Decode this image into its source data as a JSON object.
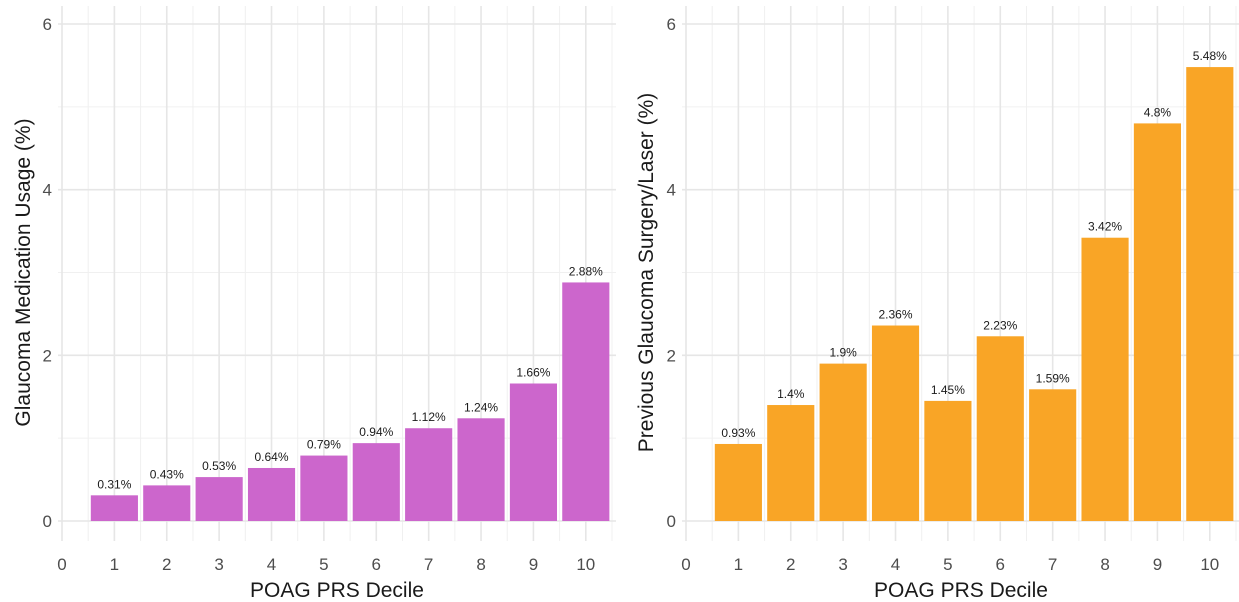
{
  "chart_data": [
    {
      "type": "bar",
      "xlabel": "POAG PRS Decile",
      "ylabel": "Glaucoma Medication Usage (%)",
      "categories": [
        "1",
        "2",
        "3",
        "4",
        "5",
        "6",
        "7",
        "8",
        "9",
        "10"
      ],
      "values": [
        0.31,
        0.43,
        0.53,
        0.64,
        0.79,
        0.94,
        1.12,
        1.24,
        1.66,
        2.88
      ],
      "data_labels": [
        "0.31%",
        "0.43%",
        "0.53%",
        "0.64%",
        "0.79%",
        "0.94%",
        "1.12%",
        "1.24%",
        "1.66%",
        "2.88%"
      ],
      "x_ticks": [
        "0",
        "1",
        "2",
        "3",
        "4",
        "5",
        "6",
        "7",
        "8",
        "9",
        "10"
      ],
      "y_ticks": [
        "0",
        "2",
        "4",
        "6"
      ],
      "ylim": [
        0,
        6
      ],
      "xlim": [
        0,
        10.5
      ],
      "grid": true,
      "bar_color": "#cc66cc"
    },
    {
      "type": "bar",
      "xlabel": "POAG PRS Decile",
      "ylabel": "Previous Glaucoma Surgery/Laser (%)",
      "categories": [
        "1",
        "2",
        "3",
        "4",
        "5",
        "6",
        "7",
        "8",
        "9",
        "10"
      ],
      "values": [
        0.93,
        1.4,
        1.9,
        2.36,
        1.45,
        2.23,
        1.59,
        3.42,
        4.8,
        5.48
      ],
      "data_labels": [
        "0.93%",
        "1.4%",
        "1.9%",
        "2.36%",
        "1.45%",
        "2.23%",
        "1.59%",
        "3.42%",
        "4.8%",
        "5.48%"
      ],
      "x_ticks": [
        "0",
        "1",
        "2",
        "3",
        "4",
        "5",
        "6",
        "7",
        "8",
        "9",
        "10"
      ],
      "y_ticks": [
        "0",
        "2",
        "4",
        "6"
      ],
      "ylim": [
        0,
        6
      ],
      "xlim": [
        0,
        10.5
      ],
      "grid": true,
      "bar_color": "#f9a526"
    }
  ]
}
